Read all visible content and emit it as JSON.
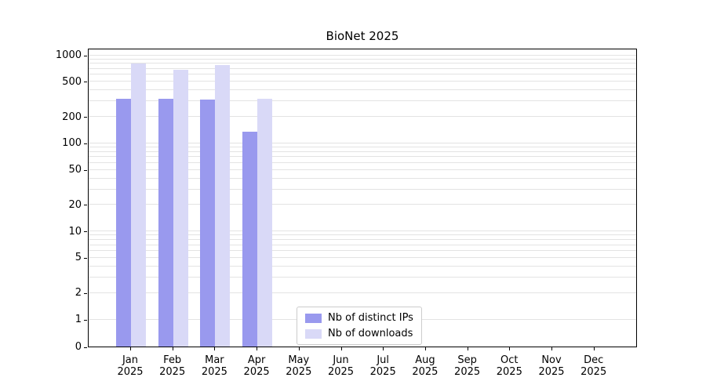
{
  "chart_data": {
    "type": "bar",
    "title": "BioNet 2025",
    "year": "2025",
    "categories": [
      "Jan",
      "Feb",
      "Mar",
      "Apr",
      "May",
      "Jun",
      "Jul",
      "Aug",
      "Sep",
      "Oct",
      "Nov",
      "Dec"
    ],
    "series": [
      {
        "name": "Nb of distinct IPs",
        "color": "#9999ee",
        "values": [
          320,
          320,
          310,
          135,
          0,
          0,
          0,
          0,
          0,
          0,
          0,
          0
        ]
      },
      {
        "name": "Nb of downloads",
        "color": "#d9d9f7",
        "values": [
          800,
          680,
          770,
          320,
          0,
          0,
          0,
          0,
          0,
          0,
          0,
          0
        ]
      }
    ],
    "yscale": "symlog",
    "yticks": [
      0,
      1,
      2,
      5,
      10,
      20,
      50,
      100,
      200,
      500,
      1000
    ],
    "ylim": [
      0,
      1100
    ],
    "xlabel": "",
    "ylabel": "",
    "grid": true,
    "legend_position": "lower center"
  }
}
